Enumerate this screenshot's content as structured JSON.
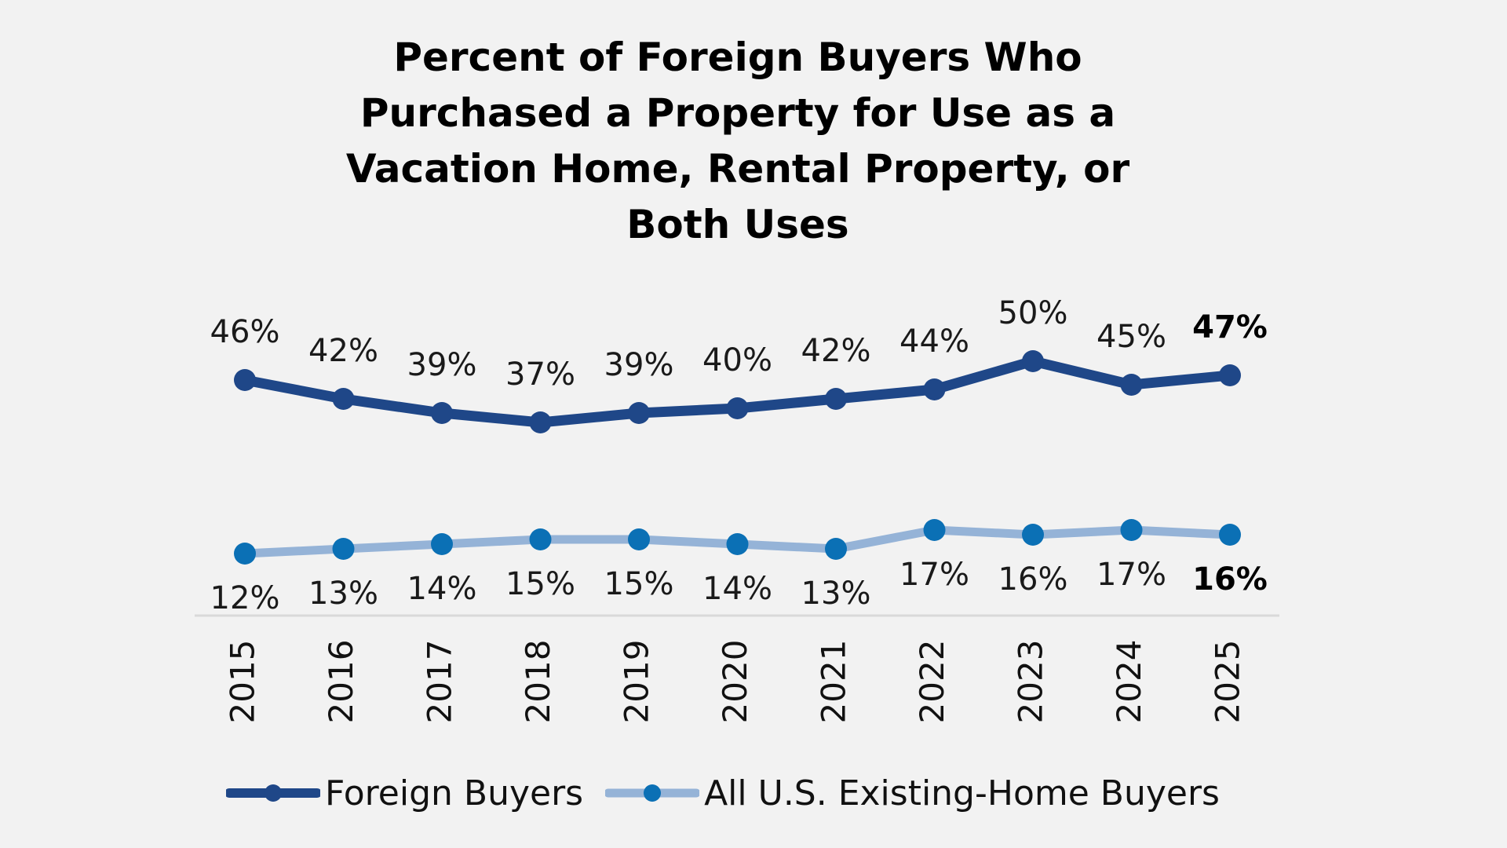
{
  "chart_data": {
    "type": "line",
    "title_lines": [
      "Percent of Foreign Buyers Who",
      "Purchased a Property for Use as a",
      "Vacation Home, Rental Property, or",
      "Both Uses"
    ],
    "categories": [
      "2015",
      "2016",
      "2017",
      "2018",
      "2019",
      "2020",
      "2021",
      "2022",
      "2023",
      "2024",
      "2025"
    ],
    "series": [
      {
        "name": "Foreign Buyers",
        "values": [
          46,
          42,
          39,
          37,
          39,
          40,
          42,
          44,
          50,
          45,
          47
        ],
        "labels": [
          "46%",
          "42%",
          "39%",
          "37%",
          "39%",
          "40%",
          "42%",
          "44%",
          "50%",
          "45%",
          "47%"
        ],
        "line_color": "#1f4788",
        "marker_color": "#1f4788",
        "label_position": "above"
      },
      {
        "name": "All U.S. Existing-Home Buyers",
        "values": [
          12,
          13,
          14,
          15,
          15,
          14,
          13,
          17,
          16,
          17,
          16
        ],
        "labels": [
          "12%",
          "13%",
          "14%",
          "15%",
          "15%",
          "14%",
          "13%",
          "17%",
          "16%",
          "17%",
          "16%"
        ],
        "line_color": "#95b3d7",
        "marker_color": "#0b70b5",
        "label_position": "below"
      }
    ],
    "xlabel": "",
    "ylabel": "",
    "y_axis_visible": false,
    "gridlines": false,
    "legend_position": "bottom",
    "last_point_labels_bold": true,
    "background_color": "#f2f2f2"
  }
}
